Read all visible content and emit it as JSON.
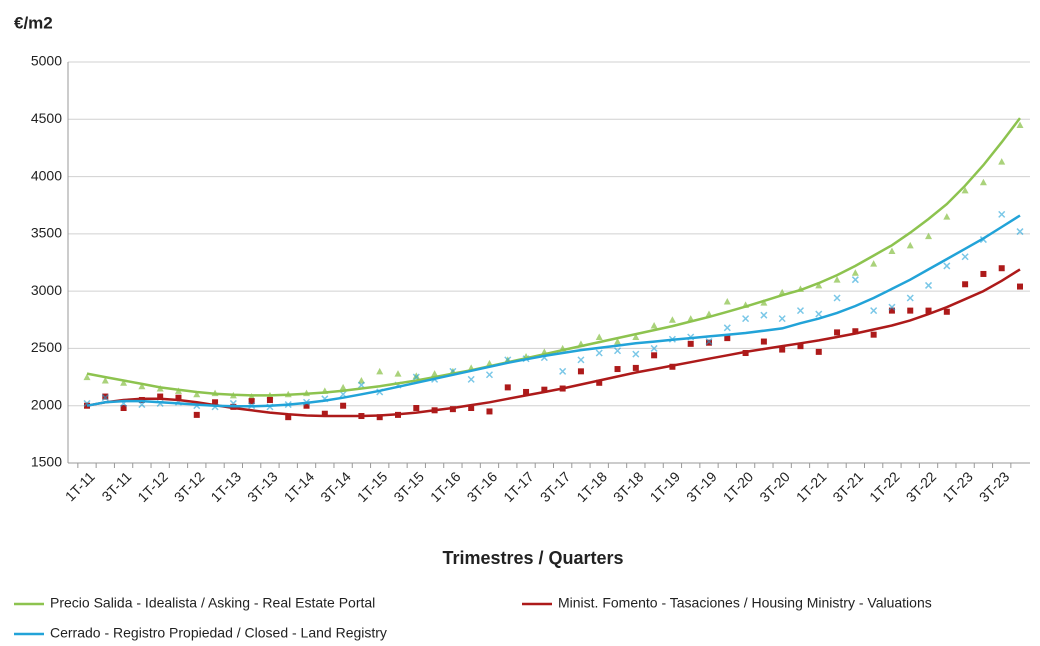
{
  "chart_data": {
    "type": "scatter-trend",
    "y_label": "€/m2",
    "x_label": "Trimestres / Quarters",
    "categories": [
      "1T-11",
      null,
      "3T-11",
      null,
      "1T-12",
      null,
      "3T-12",
      null,
      "1T-13",
      null,
      "3T-13",
      null,
      "1T-14",
      null,
      "3T-14",
      null,
      "1T-15",
      null,
      "3T-15",
      null,
      "1T-16",
      null,
      "3T-16",
      null,
      "1T-17",
      null,
      "3T-17",
      null,
      "1T-18",
      null,
      "3T-18",
      null,
      "1T-19",
      null,
      "3T-19",
      null,
      "1T-20",
      null,
      "3T-20",
      null,
      "1T-21",
      null,
      "3T-21",
      null,
      "1T-22",
      null,
      "3T-22",
      null,
      "1T-23",
      null,
      "3T-23",
      null
    ],
    "ylim": [
      1500,
      5000
    ],
    "yticks": [
      1500,
      2000,
      2500,
      3000,
      3500,
      4000,
      4500,
      5000
    ],
    "grid": true,
    "series": [
      {
        "name": "Precio Salida - Idealista / Asking - Real Estate Portal",
        "color": "#8dc34f",
        "marker": "triangle",
        "values": [
          2250,
          2220,
          2200,
          2170,
          2150,
          2130,
          2100,
          2110,
          2090,
          2080,
          2090,
          2100,
          2110,
          2130,
          2160,
          2220,
          2300,
          2280,
          2260,
          2280,
          2300,
          2330,
          2370,
          2400,
          2430,
          2470,
          2500,
          2540,
          2600,
          2560,
          2600,
          2700,
          2750,
          2760,
          2800,
          2910,
          2880,
          2900,
          2990,
          3020,
          3050,
          3100,
          3160,
          3240,
          3350,
          3400,
          3480,
          3650,
          3880,
          3950,
          4130,
          4450
        ],
        "trend": [
          2280,
          2250,
          2220,
          2190,
          2160,
          2140,
          2120,
          2105,
          2095,
          2090,
          2090,
          2095,
          2105,
          2115,
          2130,
          2150,
          2170,
          2195,
          2220,
          2250,
          2280,
          2310,
          2345,
          2380,
          2415,
          2450,
          2485,
          2520,
          2555,
          2590,
          2625,
          2660,
          2695,
          2735,
          2775,
          2820,
          2865,
          2915,
          2965,
          3010,
          3070,
          3140,
          3220,
          3310,
          3400,
          3510,
          3630,
          3760,
          3920,
          4100,
          4300,
          4510
        ]
      },
      {
        "name": "Minist. Fomento - Tasaciones / Housing Ministry - Valuations",
        "color": "#ad1a1a",
        "marker": "square",
        "values": [
          2000,
          2080,
          1980,
          2050,
          2080,
          2070,
          1920,
          2030,
          1990,
          2040,
          2050,
          1900,
          2000,
          1930,
          2000,
          1910,
          1900,
          1920,
          1980,
          1960,
          1970,
          1980,
          1950,
          2160,
          2120,
          2140,
          2150,
          2300,
          2200,
          2320,
          2330,
          2440,
          2340,
          2540,
          2550,
          2590,
          2460,
          2560,
          2490,
          2520,
          2470,
          2640,
          2650,
          2620,
          2830,
          2830,
          2830,
          2820,
          3060,
          3150,
          3200,
          3040
        ],
        "trend": [
          2000,
          2030,
          2050,
          2060,
          2060,
          2050,
          2030,
          2005,
          1980,
          1960,
          1940,
          1925,
          1915,
          1910,
          1910,
          1910,
          1915,
          1925,
          1940,
          1960,
          1980,
          2005,
          2030,
          2060,
          2090,
          2120,
          2150,
          2185,
          2220,
          2255,
          2290,
          2320,
          2350,
          2380,
          2410,
          2440,
          2470,
          2495,
          2520,
          2545,
          2570,
          2600,
          2630,
          2665,
          2700,
          2745,
          2800,
          2860,
          2930,
          3000,
          3090,
          3190
        ]
      },
      {
        "name": "Cerrado - Registro Propiedad / Closed - Land Registry",
        "color": "#22a3d8",
        "marker": "cross",
        "values": [
          2020,
          2070,
          2020,
          2010,
          2020,
          2030,
          2000,
          1990,
          2020,
          2000,
          1990,
          2010,
          2030,
          2060,
          2100,
          2180,
          2120,
          2180,
          2250,
          2230,
          2300,
          2230,
          2270,
          2400,
          2410,
          2420,
          2300,
          2400,
          2460,
          2480,
          2450,
          2500,
          2580,
          2600,
          2560,
          2680,
          2760,
          2790,
          2760,
          2830,
          2800,
          2940,
          3100,
          2830,
          2860,
          2940,
          3050,
          3220,
          3300,
          3450,
          3670,
          3520
        ],
        "trend": [
          2000,
          2030,
          2040,
          2040,
          2030,
          2020,
          2010,
          2000,
          1995,
          1995,
          2000,
          2010,
          2025,
          2045,
          2070,
          2100,
          2130,
          2165,
          2200,
          2235,
          2270,
          2305,
          2340,
          2375,
          2405,
          2435,
          2460,
          2485,
          2505,
          2525,
          2545,
          2560,
          2575,
          2590,
          2605,
          2620,
          2635,
          2655,
          2675,
          2720,
          2760,
          2810,
          2870,
          2940,
          3020,
          3100,
          3190,
          3280,
          3370,
          3460,
          3560,
          3660
        ]
      }
    ]
  }
}
